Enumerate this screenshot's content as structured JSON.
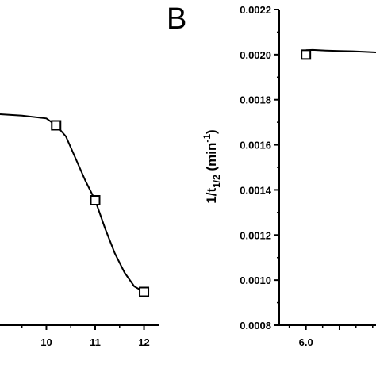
{
  "chart_data": [
    {
      "type": "line",
      "panel": "",
      "title": "",
      "xlabel": "",
      "ylabel": "",
      "x_ticks": [
        "10",
        "11",
        "12"
      ],
      "xlim": [
        9.05,
        12.3
      ],
      "ylim": [
        0,
        1
      ],
      "markers": {
        "x": [
          10.2,
          11.0,
          12.0
        ],
        "y": [
          0.72,
          0.45,
          0.12
        ]
      },
      "fit_curve": {
        "x": [
          9.05,
          9.5,
          10.0,
          10.2,
          10.4,
          10.6,
          10.8,
          11.0,
          11.2,
          11.4,
          11.6,
          11.8,
          12.0
        ],
        "y": [
          0.76,
          0.755,
          0.745,
          0.72,
          0.68,
          0.6,
          0.52,
          0.45,
          0.35,
          0.26,
          0.19,
          0.14,
          0.12
        ]
      },
      "grid": false
    },
    {
      "type": "line",
      "panel": "B",
      "title": "",
      "xlabel": "",
      "ylabel": "1/t1/2 (min-1)",
      "ylabel_parts": {
        "main": "1/t",
        "sub": "1/2",
        "unit_open": " (min",
        "sup": "-1",
        "unit_close": ")"
      },
      "y_ticks": [
        "0.0008",
        "0.0010",
        "0.0012",
        "0.0014",
        "0.0016",
        "0.0018",
        "0.0020",
        "0.0022"
      ],
      "x_ticks": [
        "6.0"
      ],
      "xlim": [
        5.6,
        7.05
      ],
      "ylim": [
        0.0008,
        0.0022
      ],
      "markers": {
        "x": [
          6.0
        ],
        "y": [
          0.002
        ]
      },
      "fit_curve": {
        "x": [
          6.0,
          6.1,
          6.3,
          6.5,
          6.7,
          6.9,
          7.05
        ],
        "y": [
          0.00202,
          0.002021,
          0.002018,
          0.002016,
          0.002015,
          0.002012,
          0.00201
        ]
      },
      "grid": false
    }
  ]
}
